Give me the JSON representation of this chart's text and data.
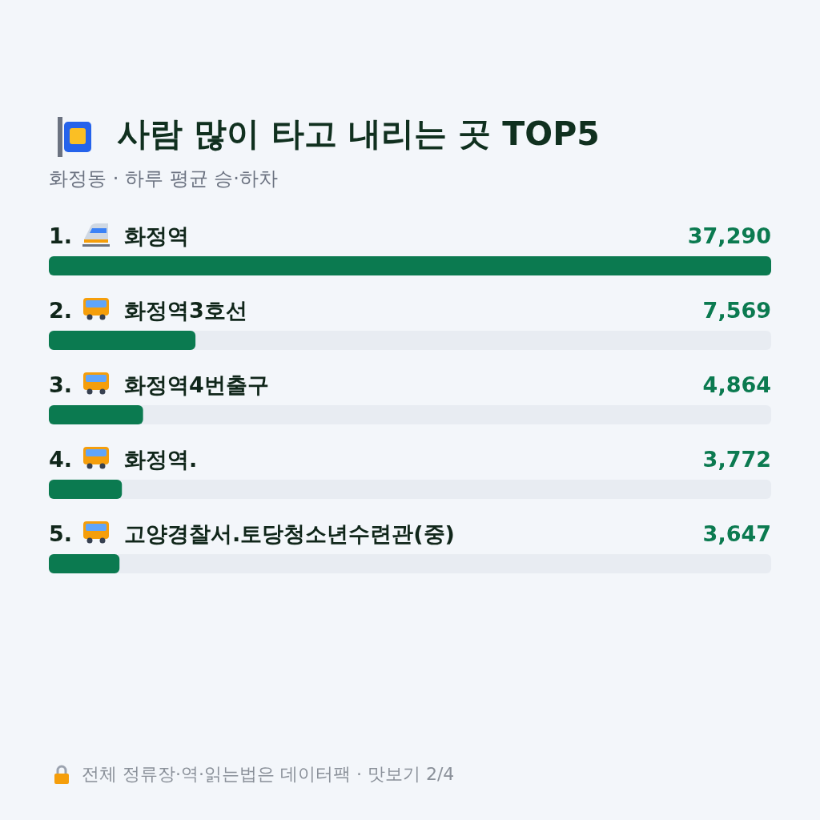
{
  "chart_data": {
    "type": "bar",
    "orientation": "horizontal",
    "title": "사람 많이 타고 내리는 곳 TOP5",
    "subtitle": "화정동 · 하루 평균 승·하차",
    "categories": [
      "1. 화정역",
      "2. 화정역3호선",
      "3. 화정역4번출구",
      "4. 화정역.",
      "5. 고양경찰서.토당청소년수련관(중)"
    ],
    "values": [
      37290,
      7569,
      4864,
      3772,
      3647
    ],
    "color": "#0b7a50",
    "value_labels": [
      "37,290",
      "7,569",
      "4,864",
      "3,772",
      "3,647"
    ],
    "annotations": [
      "전체 정류장·역·읽는법은 데이터팩 · 맛보기 2/4"
    ]
  }
}
